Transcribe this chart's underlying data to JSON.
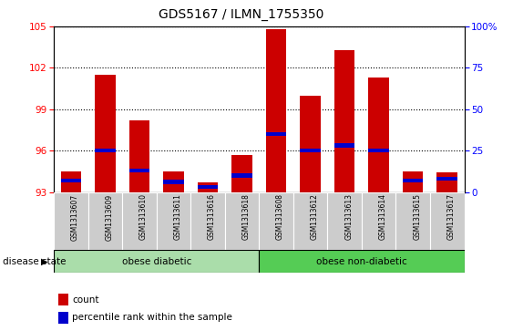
{
  "title": "GDS5167 / ILMN_1755350",
  "samples": [
    "GSM1313607",
    "GSM1313609",
    "GSM1313610",
    "GSM1313611",
    "GSM1313616",
    "GSM1313618",
    "GSM1313608",
    "GSM1313612",
    "GSM1313613",
    "GSM1313614",
    "GSM1313615",
    "GSM1313617"
  ],
  "count_values": [
    94.5,
    101.5,
    98.2,
    94.5,
    93.7,
    95.7,
    104.8,
    100.0,
    103.3,
    101.3,
    94.5,
    94.4
  ],
  "percentile_values": [
    7,
    25,
    13,
    6,
    3,
    10,
    35,
    25,
    28,
    25,
    7,
    8
  ],
  "y_min": 93,
  "y_max": 105,
  "y_ticks": [
    93,
    96,
    99,
    102,
    105
  ],
  "y2_ticks": [
    0,
    25,
    50,
    75,
    100
  ],
  "group1_label": "obese diabetic",
  "group2_label": "obese non-diabetic",
  "group1_count": 6,
  "group2_count": 6,
  "bar_color": "#cc0000",
  "percentile_color": "#0000cc",
  "group1_bg": "#aaddaa",
  "group2_bg": "#55cc55",
  "tick_bg": "#cccccc",
  "disease_label": "disease state",
  "legend_count": "count",
  "legend_percentile": "percentile rank within the sample"
}
